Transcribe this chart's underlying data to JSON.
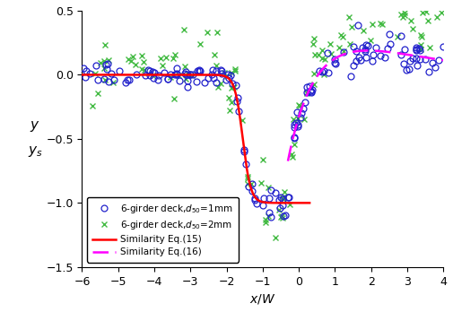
{
  "title": "",
  "xlabel": "$x/W$",
  "ylabel": "$y/y_s$",
  "xlim": [
    -6,
    4
  ],
  "ylim": [
    -1.5,
    0.5
  ],
  "xticks": [
    -6,
    -5,
    -4,
    -3,
    -2,
    -1,
    0,
    1,
    2,
    3,
    4
  ],
  "yticks": [
    -1.5,
    -1.0,
    -0.5,
    0.0,
    0.5
  ],
  "eq15_color": "#ff0000",
  "eq16_color": "#ff00ff",
  "blue_circle_color": "#2222cc",
  "green_x_color": "#44bb44",
  "legend_labels": [
    "6-girder deck,$d_{50}$=1mm",
    "6-girder deck,$d_{50}$=2mm",
    "Similarity Eq.(15)",
    "Similarity Eq.(16)"
  ],
  "figsize": [
    5.05,
    3.48
  ],
  "dpi": 100,
  "eq15_x0": -1.55,
  "eq15_k": 4.5,
  "eq16_alpha": 1.5,
  "eq16_beta": 0.38,
  "eq16_gamma": 0.6
}
